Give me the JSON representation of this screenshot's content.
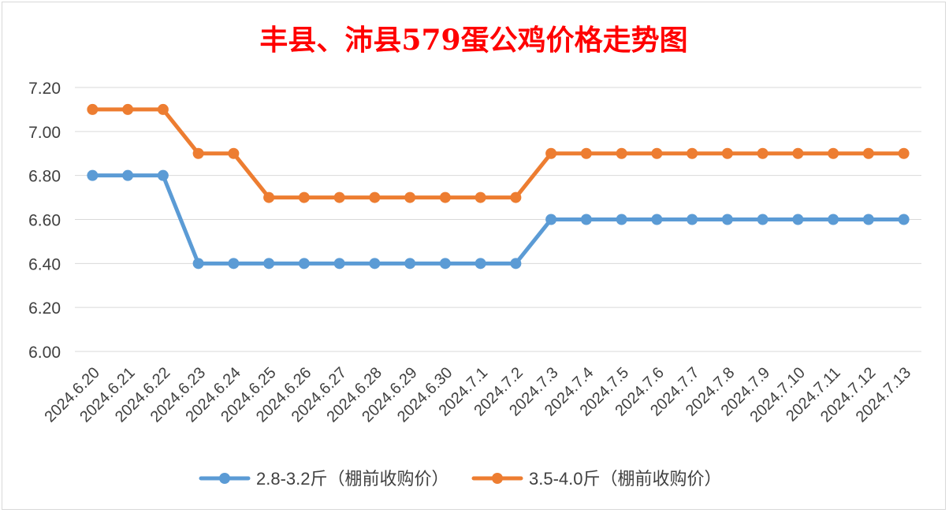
{
  "chart_data": {
    "type": "line",
    "title": "丰县、沛县579蛋公鸡价格走势图",
    "title_color": "#ff0000",
    "xlabel": "",
    "ylabel": "",
    "categories": [
      "2024.6.20",
      "2024.6.21",
      "2024.6.22",
      "2024.6.23",
      "2024.6.24",
      "2024.6.25",
      "2024.6.26",
      "2024.6.27",
      "2024.6.28",
      "2024.6.29",
      "2024.6.30",
      "2024.7.1",
      "2024.7.2",
      "2024.7.3",
      "2024.7.4",
      "2024.7.5",
      "2024.7.6",
      "2024.7.7",
      "2024.7.8",
      "2024.7.9",
      "2024.7.10",
      "2024.7.11",
      "2024.7.12",
      "2024.7.13"
    ],
    "y_ticks": [
      "6.00",
      "6.20",
      "6.40",
      "6.60",
      "6.80",
      "7.00",
      "7.20"
    ],
    "ylim": [
      6.0,
      7.2
    ],
    "grid": true,
    "legend_position": "bottom",
    "series": [
      {
        "name": "2.8-3.2斤（棚前收购价）",
        "color": "#5b9bd5",
        "values": [
          6.8,
          6.8,
          6.8,
          6.4,
          6.4,
          6.4,
          6.4,
          6.4,
          6.4,
          6.4,
          6.4,
          6.4,
          6.4,
          6.6,
          6.6,
          6.6,
          6.6,
          6.6,
          6.6,
          6.6,
          6.6,
          6.6,
          6.6,
          6.6
        ]
      },
      {
        "name": "3.5-4.0斤（棚前收购价）",
        "color": "#ed7d31",
        "values": [
          7.1,
          7.1,
          7.1,
          6.9,
          6.9,
          6.7,
          6.7,
          6.7,
          6.7,
          6.7,
          6.7,
          6.7,
          6.7,
          6.9,
          6.9,
          6.9,
          6.9,
          6.9,
          6.9,
          6.9,
          6.9,
          6.9,
          6.9,
          6.9
        ]
      }
    ]
  }
}
